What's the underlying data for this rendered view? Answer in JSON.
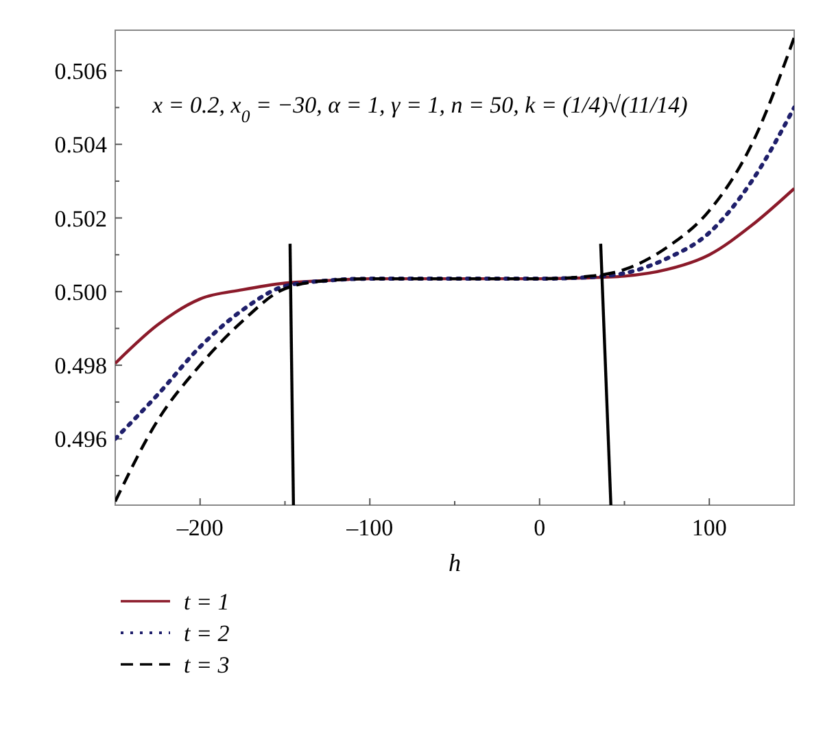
{
  "chart_data": {
    "type": "line",
    "xlabel": "h",
    "annotations": [
      "x = 0.2, x$_{0}$ = −30, α = 1, γ = 1, n = 50, k = (1/4)√(11/14)"
    ],
    "x": [
      -250,
      -225,
      -200,
      -175,
      -150,
      -125,
      -100,
      -50,
      0,
      25,
      50,
      75,
      100,
      125,
      150
    ],
    "xlim": [
      -250,
      150
    ],
    "xticks": [
      {
        "value": -200,
        "label": "–200"
      },
      {
        "value": -150,
        "label": null
      },
      {
        "value": -100,
        "label": "–100"
      },
      {
        "value": -50,
        "label": null
      },
      0,
      {
        "value": 50,
        "label": null
      },
      100
    ],
    "ylim": [
      0.4942,
      0.5071
    ],
    "yticks": [
      {
        "value": 0.495,
        "label": null
      },
      0.496,
      {
        "value": 0.497,
        "label": null
      },
      0.498,
      {
        "value": 0.499,
        "label": null
      },
      {
        "value": 0.5,
        "label": "0.500"
      },
      {
        "value": 0.501,
        "label": null
      },
      0.502,
      {
        "value": 0.503,
        "label": null
      },
      0.504,
      {
        "value": 0.505,
        "label": null
      },
      0.506
    ],
    "grid": false,
    "legend": "bottom left",
    "marker": "none",
    "series": [
      {
        "name": "t = 1",
        "color": "#8b1a2a",
        "line_style": "solid",
        "values": [
          0.49805,
          0.4991,
          0.4998,
          0.50005,
          0.50023,
          0.5003,
          0.50035,
          0.50035,
          0.50035,
          0.50037,
          0.50042,
          0.5006,
          0.501,
          0.5018,
          0.5028
        ]
      },
      {
        "name": "t = 2",
        "color": "#1f1f6b",
        "line_style": "dotted",
        "values": [
          0.496,
          0.4972,
          0.4985,
          0.4995,
          0.50015,
          0.5003,
          0.50035,
          0.50035,
          0.50035,
          0.50038,
          0.5005,
          0.5009,
          0.5016,
          0.503,
          0.505
        ]
      },
      {
        "name": "t = 3",
        "color": "#000000",
        "line_style": "dashed",
        "values": [
          0.4943,
          0.4965,
          0.498,
          0.4992,
          0.50008,
          0.5003,
          0.50035,
          0.50035,
          0.50035,
          0.5004,
          0.5006,
          0.5012,
          0.5022,
          0.504,
          0.5069
        ]
      },
      {
        "color": "#000000",
        "line_style": "solid",
        "x": [
          -147,
          -145
        ],
        "values": [
          0.5013,
          0.4942
        ]
      },
      {
        "color": "#000000",
        "line_style": "solid",
        "x": [
          36,
          42
        ],
        "values": [
          0.5013,
          0.4942
        ]
      }
    ]
  }
}
